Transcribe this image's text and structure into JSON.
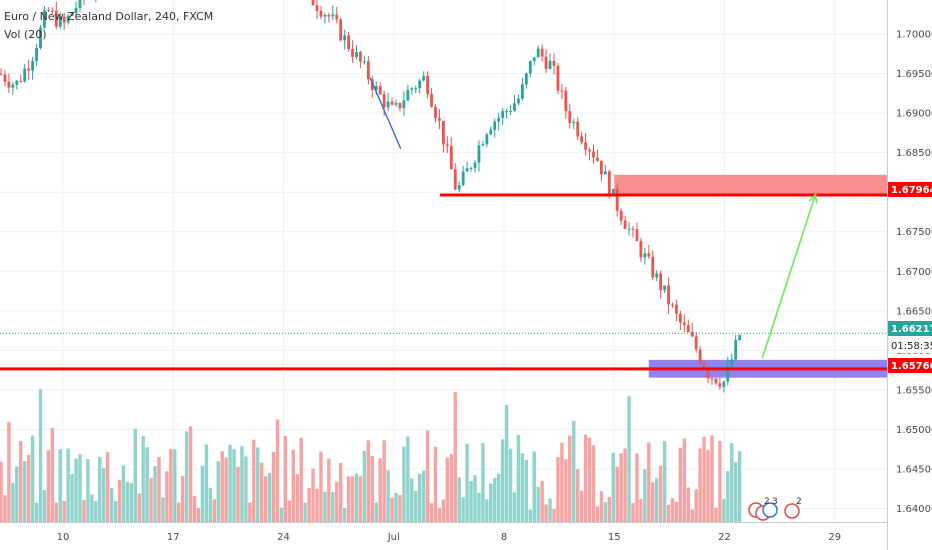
{
  "header": {
    "symbol_title": "Euro / New Zealand Dollar, 240, FXCM",
    "indicator": "Vol (20)"
  },
  "price_tags": {
    "current": "1.66217",
    "countdown": "01:58:35",
    "support": "1.65766",
    "resistance": "1.67964"
  },
  "event_markers": [
    {
      "name": "marker-1",
      "text": "2"
    },
    {
      "name": "marker-2",
      "text": "3"
    },
    {
      "name": "marker-3",
      "text": "2"
    }
  ],
  "colors": {
    "up": "#26a69a",
    "down": "#ef5350",
    "vol_up": "#8fd3ca",
    "vol_down": "#f5a3a3",
    "level_line": "#ff0000",
    "resistance_zone": "#f77a7a",
    "support_zone": "#7d6cf0",
    "arrow": "#66ee55",
    "trend_line": "#3a6fd8",
    "current_line": "#26a69a",
    "grid": "#eef0f3"
  },
  "chart_data": {
    "type": "candlestick",
    "x_axis": {
      "tick_labels": [
        "10",
        "17",
        "24",
        "Jul",
        "8",
        "15",
        "22",
        "29"
      ],
      "range": [
        "Jun 6",
        "Jul 31"
      ]
    },
    "y_axis": {
      "tick_labels": [
        "1.70000",
        "1.69500",
        "1.69000",
        "1.68500",
        "1.68000",
        "1.67500",
        "1.67000",
        "1.66500",
        "1.66000",
        "1.65500",
        "1.65000",
        "1.64500",
        "1.64000"
      ],
      "range": [
        1.6383,
        1.7043
      ]
    },
    "levels": {
      "resistance": 1.67964,
      "support": 1.65766,
      "current": 1.66217
    },
    "resistance_zone": {
      "low": 1.6795,
      "high": 1.6822,
      "from": "Jul 15",
      "to": "end"
    },
    "support_zone": {
      "low": 1.65655,
      "high": 1.6588,
      "from": "Jul 17",
      "to": "end"
    },
    "projection_arrow": {
      "from": {
        "date": "Jul 23",
        "price": 1.659
      },
      "to": {
        "date": "Jul 26",
        "price": 1.6797
      }
    },
    "trend_line": {
      "from": {
        "date": "Jun 30",
        "price": 1.6945
      },
      "to": {
        "date": "Jul 1",
        "price": 1.6855
      }
    },
    "price_path": [
      {
        "date": "Jun 6",
        "price": 1.695
      },
      {
        "date": "Jun 7",
        "price": 1.6935
      },
      {
        "date": "Jun 8",
        "price": 1.697
      },
      {
        "date": "Jun 9",
        "price": 1.703
      },
      {
        "date": "Jun 10",
        "price": 1.701
      },
      {
        "date": "Jun 11",
        "price": 1.704
      },
      {
        "date": "Jun 12",
        "price": 1.706
      },
      {
        "date": "Jun 13",
        "price": 1.709
      },
      {
        "date": "Jun 17",
        "price": 1.712
      },
      {
        "date": "Jun 24",
        "price": 1.708
      },
      {
        "date": "Jun 27",
        "price": 1.702
      },
      {
        "date": "Jun 28",
        "price": 1.699
      },
      {
        "date": "Jun 29",
        "price": 1.696
      },
      {
        "date": "Jun 30",
        "price": 1.6925
      },
      {
        "date": "Jul 1",
        "price": 1.69
      },
      {
        "date": "Jul 2",
        "price": 1.693
      },
      {
        "date": "Jul 3",
        "price": 1.6945
      },
      {
        "date": "Jul 4",
        "price": 1.688
      },
      {
        "date": "Jul 5",
        "price": 1.68
      },
      {
        "date": "Jul 6",
        "price": 1.684
      },
      {
        "date": "Jul 7",
        "price": 1.6885
      },
      {
        "date": "Jul 8",
        "price": 1.69
      },
      {
        "date": "Jul 9",
        "price": 1.692
      },
      {
        "date": "Jul 10",
        "price": 1.698
      },
      {
        "date": "Jul 11",
        "price": 1.696
      },
      {
        "date": "Jul 12",
        "price": 1.69
      },
      {
        "date": "Jul 13",
        "price": 1.687
      },
      {
        "date": "Jul 14",
        "price": 1.684
      },
      {
        "date": "Jul 15",
        "price": 1.679
      },
      {
        "date": "Jul 16",
        "price": 1.675
      },
      {
        "date": "Jul 17",
        "price": 1.6715
      },
      {
        "date": "Jul 18",
        "price": 1.668
      },
      {
        "date": "Jul 19",
        "price": 1.664
      },
      {
        "date": "Jul 20",
        "price": 1.661
      },
      {
        "date": "Jul 21",
        "price": 1.657
      },
      {
        "date": "Jul 22",
        "price": 1.656
      },
      {
        "date": "Jul 23",
        "price": 1.6622
      }
    ]
  }
}
